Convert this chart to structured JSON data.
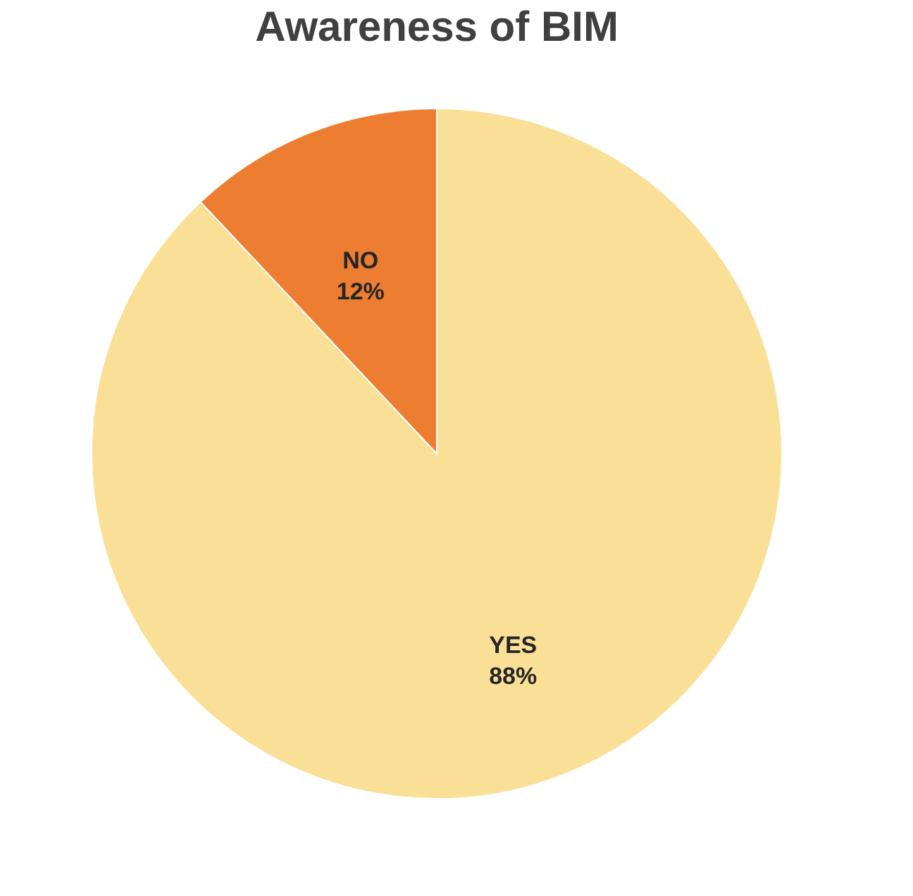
{
  "chart_data": {
    "type": "pie",
    "title": "Awareness of BIM",
    "categories": [
      "YES",
      "NO"
    ],
    "values": [
      88,
      12
    ],
    "colors": [
      "#fadf97",
      "#ed7d31"
    ],
    "value_labels": [
      "88%",
      "12%"
    ],
    "legend": false
  }
}
